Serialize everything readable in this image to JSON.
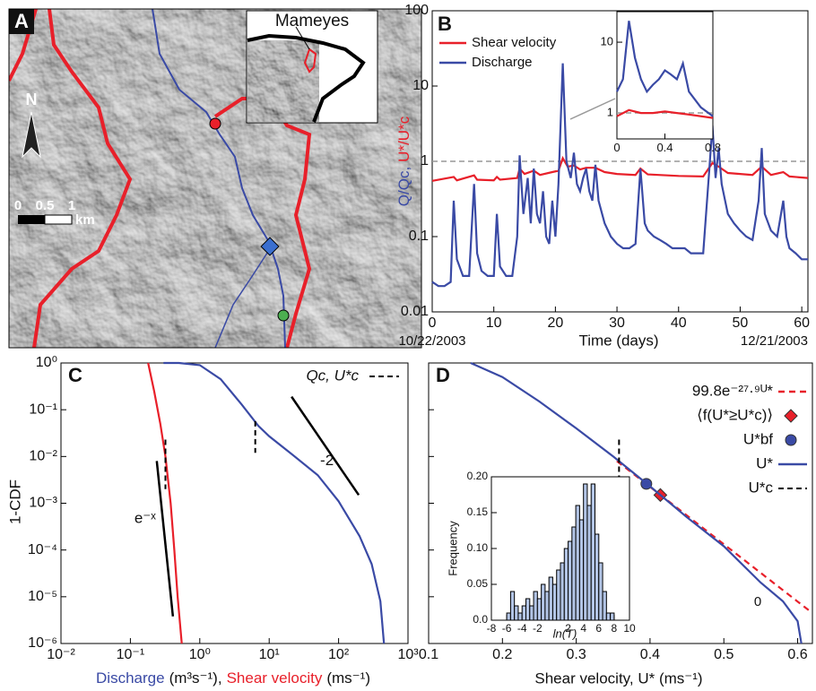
{
  "map": {
    "panel_label": "A",
    "inset_label": "Mameyes",
    "north": "N",
    "scale_ticks": [
      "0",
      "0.5",
      "1"
    ],
    "scale_unit": "km"
  },
  "chart_data": [
    {
      "type": "line",
      "panel_label": "B",
      "xlabel": "Time (days)",
      "ylabel_discharge": "Q/Qc,",
      "ylabel_shear": "U*/U*c",
      "start_date": "10/22/2003",
      "end_date": "12/21/2003",
      "log_y": true,
      "xlim": [
        0,
        61
      ],
      "ylim": [
        0.01,
        100
      ],
      "xticks": [
        0,
        10,
        20,
        30,
        40,
        50,
        60
      ],
      "yticks": [
        0.01,
        0.1,
        1,
        10,
        100
      ],
      "reference_line": 1,
      "legend": "upper left",
      "series": [
        {
          "name": "Shear velocity",
          "color": "#e8202a",
          "x": [
            0,
            3.5,
            4,
            6.8,
            7.3,
            10,
            10.5,
            11,
            13.8,
            14.2,
            15,
            16.5,
            17.5,
            19.5,
            20.5,
            21.2,
            22,
            23,
            24,
            25,
            26.5,
            28,
            30,
            33,
            33.8,
            35,
            40,
            44,
            45.5,
            46.5,
            48,
            52,
            53.5,
            55,
            57,
            58,
            61
          ],
          "values": [
            0.55,
            0.62,
            0.56,
            0.65,
            0.57,
            0.56,
            0.62,
            0.57,
            0.6,
            0.8,
            0.68,
            0.75,
            0.66,
            0.72,
            0.75,
            1.1,
            0.85,
            0.88,
            0.78,
            0.82,
            0.82,
            0.72,
            0.68,
            0.66,
            0.8,
            0.67,
            0.64,
            0.63,
            0.95,
            0.85,
            0.7,
            0.66,
            0.85,
            0.66,
            0.72,
            0.63,
            0.6
          ]
        },
        {
          "name": "Discharge",
          "color": "#3a4aa5",
          "x": [
            0,
            1,
            2,
            3,
            3.5,
            4,
            5,
            6,
            6.8,
            7.3,
            8,
            9,
            10,
            10.5,
            11,
            12,
            13,
            13.8,
            14.2,
            14.8,
            15.5,
            16,
            16.5,
            17,
            17.5,
            18,
            18.5,
            19,
            19.5,
            20,
            20.5,
            21.2,
            21.8,
            22.5,
            23,
            23.5,
            24,
            24.5,
            25,
            25.5,
            26,
            26.5,
            27,
            28,
            29,
            30,
            31,
            32,
            33,
            33.8,
            34.5,
            35,
            36,
            37,
            38,
            39,
            40,
            41,
            42,
            43,
            44,
            45,
            45.5,
            46,
            46.5,
            47,
            48,
            49,
            50,
            51,
            52,
            53,
            53.5,
            54,
            55,
            56,
            57,
            57.5,
            58,
            59,
            60,
            61
          ],
          "values": [
            0.025,
            0.022,
            0.022,
            0.025,
            0.3,
            0.05,
            0.03,
            0.03,
            0.5,
            0.06,
            0.035,
            0.03,
            0.03,
            0.2,
            0.04,
            0.03,
            0.03,
            0.1,
            1.2,
            0.2,
            0.6,
            0.15,
            0.8,
            0.2,
            0.15,
            0.4,
            0.1,
            0.08,
            0.3,
            0.1,
            0.5,
            20,
            1.0,
            0.6,
            1.3,
            0.5,
            0.4,
            0.6,
            0.8,
            0.4,
            0.3,
            0.9,
            0.3,
            0.15,
            0.1,
            0.08,
            0.07,
            0.07,
            0.08,
            0.8,
            0.15,
            0.12,
            0.1,
            0.09,
            0.08,
            0.07,
            0.07,
            0.07,
            0.06,
            0.06,
            0.06,
            0.8,
            3,
            0.6,
            1.5,
            0.5,
            0.2,
            0.15,
            0.12,
            0.1,
            0.09,
            0.3,
            1.5,
            0.2,
            0.12,
            0.1,
            0.3,
            0.1,
            0.07,
            0.06,
            0.05,
            0.05
          ]
        }
      ]
    },
    {
      "type": "line",
      "log_y": true,
      "xlim": [
        0,
        0.8
      ],
      "ylim": [
        0.43,
        27
      ],
      "xticks": [
        0,
        0.4,
        0.8
      ],
      "yticks": [
        1,
        10
      ],
      "reference_line": 1,
      "series": [
        {
          "color": "#3a4aa5",
          "x": [
            0,
            0.05,
            0.1,
            0.15,
            0.2,
            0.25,
            0.3,
            0.35,
            0.4,
            0.45,
            0.5,
            0.55,
            0.6,
            0.7,
            0.8
          ],
          "values": [
            2,
            3,
            20,
            6,
            3,
            2,
            2.5,
            3,
            4,
            3.5,
            3,
            5,
            2,
            1.2,
            0.9
          ]
        },
        {
          "color": "#e8202a",
          "x": [
            0,
            0.1,
            0.2,
            0.3,
            0.4,
            0.5,
            0.6,
            0.8
          ],
          "values": [
            0.9,
            1.1,
            1.0,
            1.0,
            1.05,
            1.0,
            0.95,
            0.85
          ]
        }
      ]
    },
    {
      "type": "line",
      "panel_label": "C",
      "ylabel": "1-CDF",
      "xlabel_units": [
        "(m³s⁻¹),",
        "(ms⁻¹)"
      ],
      "log_x": true,
      "log_y": true,
      "xlim": [
        0.01,
        1000
      ],
      "ylim": [
        1e-06,
        1
      ],
      "xticks": [
        {
          "value": 0.01,
          "label": "10⁻²"
        },
        {
          "value": 0.1,
          "label": "10⁻¹"
        },
        {
          "value": 1,
          "label": "10⁰"
        },
        {
          "value": 10,
          "label": "10¹"
        },
        {
          "value": 100,
          "label": "10²"
        },
        {
          "value": 1000,
          "label": "10³"
        }
      ],
      "yticks": [
        {
          "value": 1e-06,
          "label": "10⁻⁶"
        },
        {
          "value": 1e-05,
          "label": "10⁻⁵"
        },
        {
          "value": 0.0001,
          "label": "10⁻⁴"
        },
        {
          "value": 0.001,
          "label": "10⁻³"
        },
        {
          "value": 0.01,
          "label": "10⁻²"
        },
        {
          "value": 0.1,
          "label": "10⁻¹"
        },
        {
          "value": 1,
          "label": "10⁰"
        }
      ],
      "series": [
        {
          "name": "Discharge",
          "color": "#3a4aa5",
          "x": [
            0.3,
            0.5,
            1,
            2,
            4,
            7,
            10,
            20,
            50,
            100,
            200,
            300,
            400,
            450
          ],
          "values": [
            1,
            1,
            0.9,
            0.45,
            0.13,
            0.045,
            0.027,
            0.012,
            0.004,
            0.0011,
            0.0002,
            5e-05,
            8e-06,
            1e-06
          ]
        },
        {
          "name": "Shear velocity",
          "color": "#e8202a",
          "x": [
            0.18,
            0.22,
            0.27,
            0.32,
            0.38,
            0.43,
            0.48,
            0.55
          ],
          "values": [
            1,
            0.25,
            0.05,
            0.01,
            0.001,
            0.0001,
            1e-05,
            1e-06
          ]
        }
      ],
      "threshold_label": "Qc, U*c",
      "thresholds": [
        {
          "x": 6.3,
          "y": [
            0.057,
            0.012
          ]
        },
        {
          "x": 0.32,
          "y": [
            0.023,
            0.002
          ]
        }
      ],
      "guides": [
        {
          "label": "-2",
          "x": [
            21,
            195
          ],
          "y": [
            0.19,
            0.0015
          ]
        },
        {
          "label": "e⁻ˣ",
          "x": [
            0.24,
            0.41
          ],
          "y": [
            0.008,
            3.8e-06
          ]
        }
      ]
    },
    {
      "type": "line",
      "panel_label": "D",
      "xlabel": "Shear velocity, U* (ms⁻¹)",
      "log_y": true,
      "annotation": "0",
      "xlim": [
        0.1,
        0.62
      ],
      "ylim": [
        1e-06,
        1
      ],
      "xticks": [
        0.1,
        0.2,
        0.3,
        0.4,
        0.5,
        0.6
      ],
      "yticks": [
        1e-06,
        1e-05,
        0.0001,
        0.001,
        0.01,
        0.1,
        1
      ],
      "series": [
        {
          "name": "99.8e⁻²⁷·⁹ᵁ*",
          "color": "#e8202a",
          "dashed": true,
          "x": [
            0.355,
            0.616
          ],
          "values": [
            0.008,
            5e-06
          ]
        },
        {
          "name": "⟨f(U*≥U*c)⟩",
          "color": "#e8202a",
          "marker": "diamond",
          "x": [
            0.414
          ],
          "values": [
            0.0015
          ]
        },
        {
          "name": "U*bf",
          "color": "#3a4aa5",
          "marker": "circle",
          "x": [
            0.395
          ],
          "values": [
            0.0026
          ]
        },
        {
          "name": "U*",
          "color": "#3a4aa5",
          "x": [
            0.157,
            0.2,
            0.25,
            0.3,
            0.35,
            0.4,
            0.45,
            0.5,
            0.55,
            0.58,
            0.6,
            0.605
          ],
          "values": [
            1,
            0.5,
            0.15,
            0.04,
            0.01,
            0.0023,
            0.0005,
            0.00012,
            2e-05,
            8e-06,
            3e-06,
            1e-06
          ]
        }
      ],
      "thresholds": [
        {
          "name": "U*c",
          "x": 0.358,
          "y": [
            0.023,
            0.00086
          ]
        }
      ]
    },
    {
      "type": "histogram",
      "xlabel": "ln(T)",
      "ylabel": "Frequency",
      "color": "#b3c5e6",
      "xlim": [
        -8,
        10
      ],
      "ylim": [
        0,
        0.2
      ],
      "xticks": [
        -8,
        -6,
        -4,
        -2,
        2,
        4,
        6,
        8,
        10
      ],
      "yticks": [
        {
          "value": 0,
          "label": "0.0"
        },
        0.05,
        {
          "value": 0.1,
          "label": "0.10"
        },
        0.15,
        {
          "value": 0.2,
          "label": "0.20"
        }
      ],
      "bins": [
        -6,
        -5.5,
        -5,
        -4.5,
        -4,
        -3.5,
        -3,
        -2.5,
        -2,
        -1.5,
        -1,
        -0.5,
        0,
        0.5,
        1,
        1.5,
        2,
        2.5,
        3,
        3.5,
        4,
        4.5,
        5,
        5.5,
        6,
        6.5,
        7,
        7.5,
        8
      ],
      "values": [
        0.01,
        0.04,
        0.02,
        0.01,
        0.02,
        0.03,
        0.02,
        0.04,
        0.03,
        0.05,
        0.04,
        0.06,
        0.05,
        0.07,
        0.08,
        0.1,
        0.11,
        0.13,
        0.16,
        0.14,
        0.19,
        0.16,
        0.19,
        0.12,
        0.08,
        0.04,
        0.01,
        0.01
      ]
    }
  ]
}
